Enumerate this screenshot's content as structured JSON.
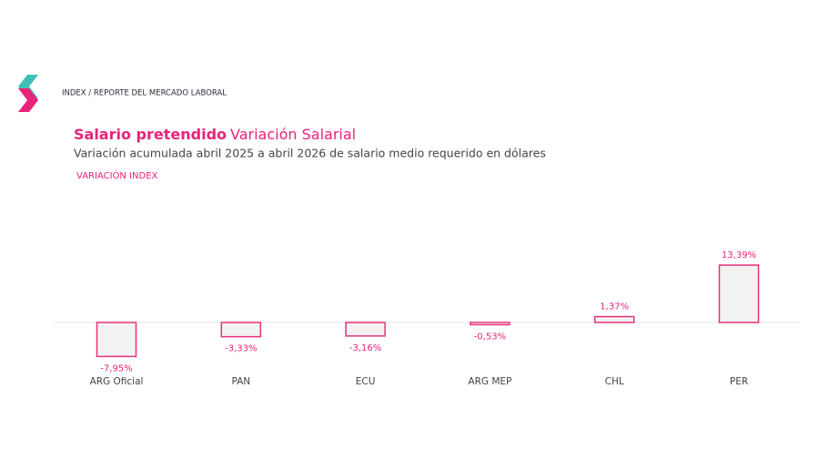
{
  "header": {
    "breadcrumb": "INDEX / REPORTE DEL MERCADO LABORAL"
  },
  "chart_data": {
    "type": "bar",
    "title": {
      "main": "Salario pretendido",
      "rest": "Variación Salarial"
    },
    "subtitle": "Variación acumulada abril 2025 a abril 2026 de salario medio requerido en dólares",
    "series_label": "VARIACIÓN INDEX",
    "categories": [
      "ARG Oficial",
      "PAN",
      "ECU",
      "ARG MEP",
      "CHL",
      "PER"
    ],
    "values": [
      -7.95,
      -3.33,
      -3.16,
      -0.53,
      1.37,
      13.39
    ],
    "value_labels": [
      "-7,95%",
      "-3,33%",
      "-3,16%",
      "-0,53%",
      "1,37%",
      "13,39%"
    ],
    "color": "#e8327c"
  }
}
